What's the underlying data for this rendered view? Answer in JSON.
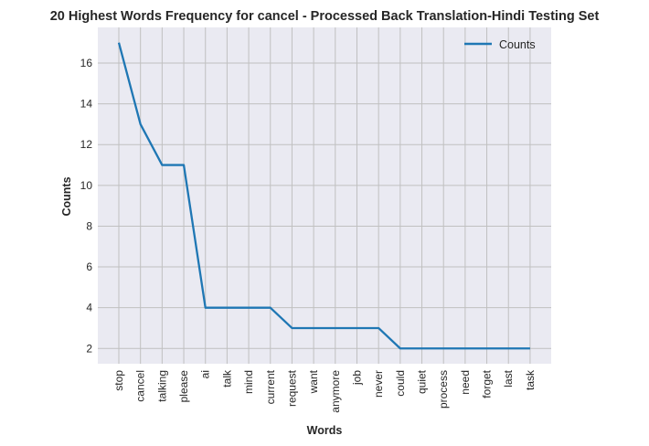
{
  "chart_data": {
    "type": "line",
    "title": "20 Highest Words Frequency for cancel - Processed Back Translation-Hindi Testing Set",
    "xlabel": "Words",
    "ylabel": "Counts",
    "categories": [
      "stop",
      "cancel",
      "talking",
      "please",
      "ai",
      "talk",
      "mind",
      "current",
      "request",
      "want",
      "anymore",
      "job",
      "never",
      "could",
      "quiet",
      "process",
      "need",
      "forget",
      "last",
      "task"
    ],
    "series": [
      {
        "name": "Counts",
        "values": [
          17,
          13,
          11,
          11,
          4,
          4,
          4,
          4,
          3,
          3,
          3,
          3,
          3,
          2,
          2,
          2,
          2,
          2,
          2,
          2
        ],
        "color": "#1f77b4"
      }
    ],
    "yticks": [
      2,
      4,
      6,
      8,
      10,
      12,
      14,
      16
    ],
    "ylim": [
      1.25,
      17.75
    ],
    "grid": true,
    "legend": "top-right",
    "background": "#eaeaf2",
    "grid_color": "#c0c0c0"
  }
}
